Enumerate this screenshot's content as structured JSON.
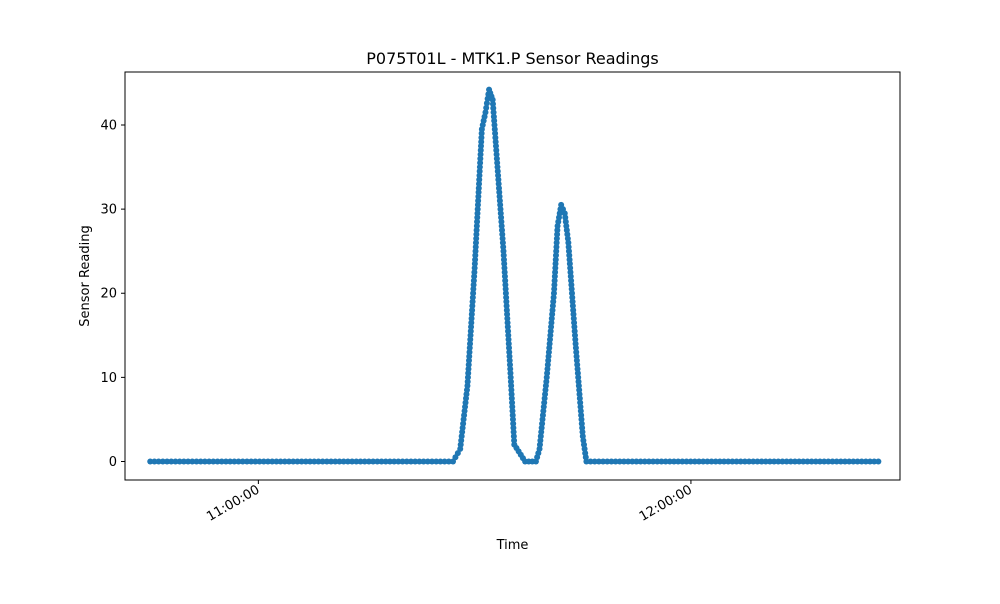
{
  "chart_data": {
    "type": "line",
    "title": "P075T01L - MTK1.P Sensor Readings",
    "xlabel": "Time",
    "ylabel": "Sensor Reading",
    "x_axis": {
      "kind": "time",
      "range": [
        "10:41:30",
        "12:29:00"
      ],
      "ticks": [
        "11:00:00",
        "12:00:00"
      ]
    },
    "y_axis": {
      "range": [
        -2.2,
        46.3
      ],
      "ticks": [
        0,
        10,
        20,
        30,
        40
      ]
    },
    "grid": false,
    "legend": "none",
    "series": [
      {
        "color": "#1f77b4",
        "marker": "circle",
        "points": [
          {
            "x": "10:45:00",
            "y": 0
          },
          {
            "x": "11:27:00",
            "y": 0
          },
          {
            "x": "11:28:00",
            "y": 1.5
          },
          {
            "x": "11:29:00",
            "y": 9
          },
          {
            "x": "11:30:00",
            "y": 23
          },
          {
            "x": "11:31:00",
            "y": 39.5
          },
          {
            "x": "11:31:30",
            "y": 41.5
          },
          {
            "x": "11:32:00",
            "y": 44.2
          },
          {
            "x": "11:32:30",
            "y": 43
          },
          {
            "x": "11:33:00",
            "y": 37
          },
          {
            "x": "11:34:00",
            "y": 25
          },
          {
            "x": "11:35:00",
            "y": 10
          },
          {
            "x": "11:35:30",
            "y": 2
          },
          {
            "x": "11:37:00",
            "y": 0
          },
          {
            "x": "11:38:30",
            "y": 0
          },
          {
            "x": "11:39:00",
            "y": 1.5
          },
          {
            "x": "11:40:00",
            "y": 10
          },
          {
            "x": "11:41:00",
            "y": 20
          },
          {
            "x": "11:41:30",
            "y": 28
          },
          {
            "x": "11:42:00",
            "y": 30.5
          },
          {
            "x": "11:42:30",
            "y": 29.5
          },
          {
            "x": "11:43:00",
            "y": 26
          },
          {
            "x": "11:44:00",
            "y": 14
          },
          {
            "x": "11:45:00",
            "y": 3
          },
          {
            "x": "11:45:30",
            "y": 0
          },
          {
            "x": "12:26:00",
            "y": 0
          }
        ]
      }
    ]
  }
}
